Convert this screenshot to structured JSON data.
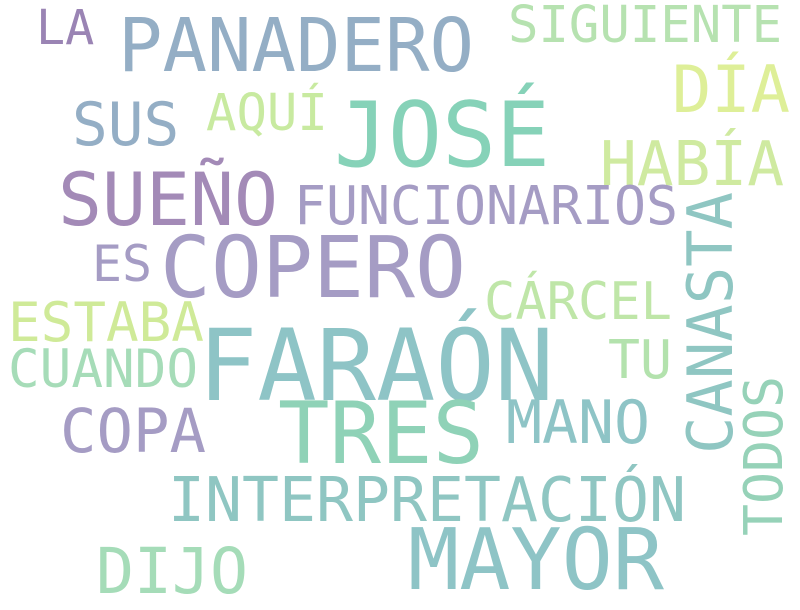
{
  "words": [
    {
      "text": "LA",
      "color": "#9a84b4"
    },
    {
      "text": "PANADERO",
      "color": "#94aec5"
    },
    {
      "text": "SIGUIENTE",
      "color": "#b6e2b0"
    },
    {
      "text": "DÍA",
      "color": "#deef98"
    },
    {
      "text": "SUS",
      "color": "#94aec5"
    },
    {
      "text": "AQUÍ",
      "color": "#c8eaa0"
    },
    {
      "text": "JOSÉ",
      "color": "#86d2b8"
    },
    {
      "text": "HABÍA",
      "color": "#cfeaa0"
    },
    {
      "text": "SUEÑO",
      "color": "#a38ab7"
    },
    {
      "text": "FUNCIONARIOS",
      "color": "#a59cc4"
    },
    {
      "text": "CANASTA",
      "color": "#8fc6c2"
    },
    {
      "text": "ES",
      "color": "#a59cc4"
    },
    {
      "text": "COPERO",
      "color": "#a59cc4"
    },
    {
      "text": "CÁRCEL",
      "color": "#bfe6a8"
    },
    {
      "text": "ESTABA",
      "color": "#cfea98"
    },
    {
      "text": "CUANDO",
      "color": "#a6dcb8"
    },
    {
      "text": "FARAÓN",
      "color": "#8ec4c6"
    },
    {
      "text": "TU",
      "color": "#b3e2ad"
    },
    {
      "text": "TODOS",
      "color": "#96d2b8"
    },
    {
      "text": "COPA",
      "color": "#a59cc4"
    },
    {
      "text": "TRES",
      "color": "#8fd2b7"
    },
    {
      "text": "MANO",
      "color": "#8ec4c6"
    },
    {
      "text": "INTERPRETACIÓN",
      "color": "#8fc6c2"
    },
    {
      "text": "DIJO",
      "color": "#a5dcb8"
    },
    {
      "text": "MAYOR",
      "color": "#8ec4c6"
    }
  ]
}
